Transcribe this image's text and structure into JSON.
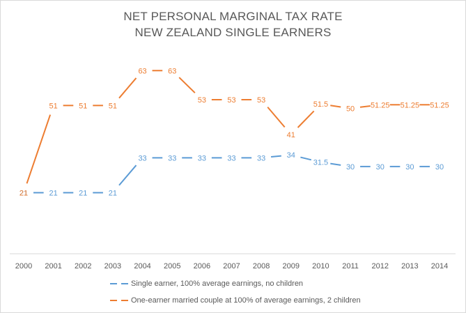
{
  "chart_data": {
    "type": "line",
    "title": [
      "NET PERSONAL MARGINAL TAX RATE",
      "NEW ZEALAND SINGLE EARNERS"
    ],
    "xlabel": "",
    "ylabel": "",
    "categories": [
      "2000",
      "2001",
      "2002",
      "2003",
      "2004",
      "2005",
      "2006",
      "2007",
      "2008",
      "2009",
      "2010",
      "2011",
      "2012",
      "2013",
      "2014"
    ],
    "ylim": [
      0,
      70
    ],
    "grid": false,
    "legend_position": "bottom",
    "series": [
      {
        "name": "Single earner, 100% average earnings, no children",
        "color": "#5B9BD5",
        "style": "dashed",
        "values": [
          21,
          21,
          21,
          21,
          33,
          33,
          33,
          33,
          33,
          34,
          31.5,
          30,
          30,
          30,
          30
        ],
        "labels": [
          "21",
          "21",
          "21",
          "21",
          "33",
          "33",
          "33",
          "33",
          "33",
          "34",
          "31.5",
          "30",
          "30",
          "30",
          "30"
        ]
      },
      {
        "name": "One-earner married couple at 100% of average earnings, 2 children",
        "color": "#ED7D31",
        "style": "dashed",
        "values": [
          21,
          51,
          51,
          51,
          63,
          63,
          53,
          53,
          53,
          41,
          51.5,
          50,
          51.25,
          51.25,
          51.25
        ],
        "labels": [
          "21",
          "51",
          "51",
          "51",
          "63",
          "63",
          "53",
          "53",
          "53",
          "41",
          "51.5",
          "50",
          "51.25",
          "51.25",
          "51.25"
        ]
      }
    ]
  }
}
